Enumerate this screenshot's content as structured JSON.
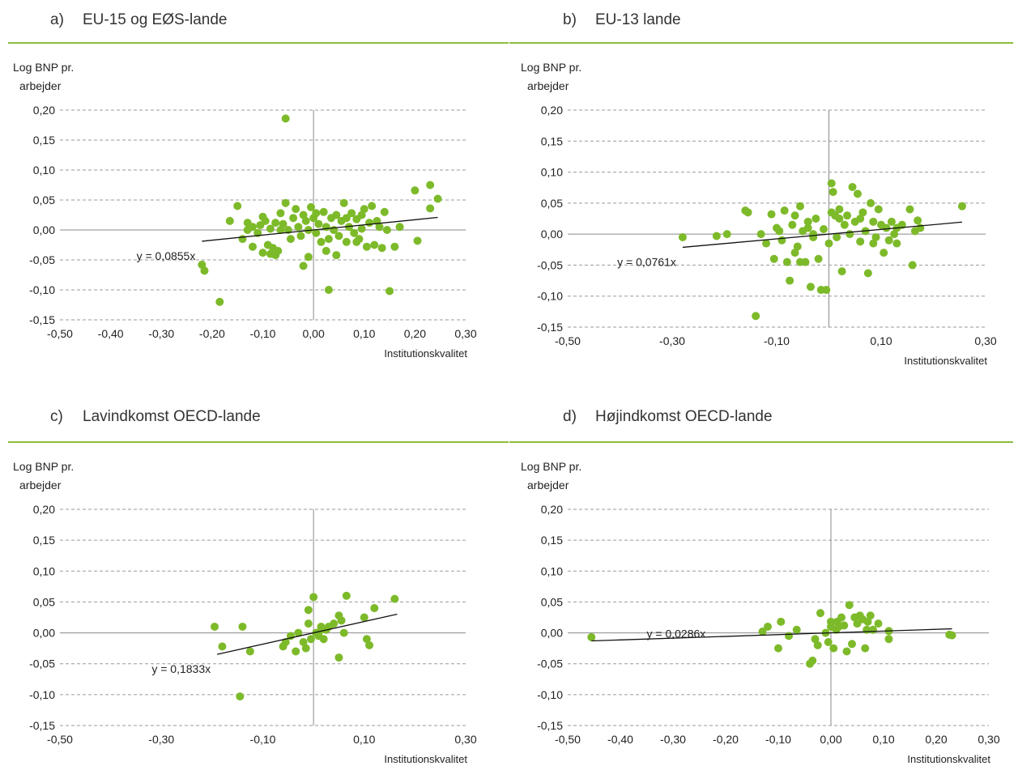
{
  "chart_data": [
    {
      "type": "scatter",
      "panel_label": "a)",
      "title": "EU-15 og EØS-lande",
      "ylabel_line1": "Log BNP pr.",
      "ylabel_line2": "arbejder",
      "xlabel": "Institutionskvalitet",
      "xlim": [
        -0.5,
        0.3
      ],
      "ylim": [
        -0.15,
        0.2
      ],
      "xticks": [
        "-0,50",
        "-0,40",
        "-0,30",
        "-0,20",
        "-0,10",
        "0,00",
        "0,10",
        "0,20",
        "0,30"
      ],
      "xtick_values": [
        -0.5,
        -0.4,
        -0.3,
        -0.2,
        -0.1,
        0.0,
        0.1,
        0.2,
        0.3
      ],
      "yticks": [
        "-0,15",
        "-0,10",
        "-0,05",
        "0,00",
        "0,05",
        "0,10",
        "0,15",
        "0,20"
      ],
      "ytick_values": [
        -0.15,
        -0.1,
        -0.05,
        0.0,
        0.05,
        0.1,
        0.15,
        0.2
      ],
      "grid": "horizontal-dashed",
      "marker_color": "#7dba2a",
      "trend": {
        "label": "y = 0,0855x",
        "slope": 0.0855,
        "x_from": -0.22,
        "x_to": 0.245
      },
      "points": [
        [
          -0.055,
          0.186
        ],
        [
          0.23,
          0.075
        ],
        [
          0.245,
          0.052
        ],
        [
          0.2,
          0.066
        ],
        [
          0.23,
          0.036
        ],
        [
          0.205,
          -0.018
        ],
        [
          -0.22,
          -0.058
        ],
        [
          -0.215,
          -0.068
        ],
        [
          -0.185,
          -0.12
        ],
        [
          0.03,
          -0.1
        ],
        [
          0.15,
          -0.102
        ],
        [
          -0.165,
          0.015
        ],
        [
          -0.15,
          0.04
        ],
        [
          -0.13,
          0.012
        ],
        [
          -0.12,
          0.005
        ],
        [
          -0.11,
          -0.005
        ],
        [
          -0.1,
          0.022
        ],
        [
          -0.095,
          0.015
        ],
        [
          -0.09,
          -0.025
        ],
        [
          -0.085,
          0.002
        ],
        [
          -0.08,
          -0.03
        ],
        [
          -0.075,
          0.012
        ],
        [
          -0.07,
          -0.035
        ],
        [
          -0.065,
          0.028
        ],
        [
          -0.06,
          0.01
        ],
        [
          -0.055,
          0.045
        ],
        [
          -0.05,
          0.0
        ],
        [
          -0.045,
          -0.015
        ],
        [
          -0.04,
          0.02
        ],
        [
          -0.035,
          0.035
        ],
        [
          -0.03,
          0.005
        ],
        [
          -0.025,
          -0.01
        ],
        [
          -0.02,
          0.025
        ],
        [
          -0.015,
          0.015
        ],
        [
          -0.01,
          0.0
        ],
        [
          -0.005,
          0.038
        ],
        [
          0.0,
          0.02
        ],
        [
          0.005,
          -0.005
        ],
        [
          0.01,
          0.01
        ],
        [
          0.015,
          -0.02
        ],
        [
          0.02,
          0.03
        ],
        [
          0.025,
          0.005
        ],
        [
          0.03,
          -0.015
        ],
        [
          0.035,
          0.02
        ],
        [
          0.04,
          0.0
        ],
        [
          0.045,
          0.025
        ],
        [
          0.05,
          -0.01
        ],
        [
          0.055,
          0.015
        ],
        [
          0.06,
          0.045
        ],
        [
          0.065,
          -0.02
        ],
        [
          0.07,
          0.005
        ],
        [
          0.075,
          0.028
        ],
        [
          0.08,
          -0.005
        ],
        [
          0.085,
          0.018
        ],
        [
          0.09,
          -0.015
        ],
        [
          0.095,
          0.002
        ],
        [
          0.1,
          0.035
        ],
        [
          0.105,
          -0.028
        ],
        [
          0.11,
          0.012
        ],
        [
          0.115,
          0.04
        ],
        [
          0.12,
          -0.025
        ],
        [
          0.125,
          0.015
        ],
        [
          0.13,
          0.005
        ],
        [
          0.135,
          -0.03
        ],
        [
          0.14,
          0.03
        ],
        [
          0.145,
          0.0
        ],
        [
          -0.14,
          -0.015
        ],
        [
          -0.13,
          0.0
        ],
        [
          -0.12,
          -0.028
        ],
        [
          -0.105,
          0.008
        ],
        [
          -0.1,
          -0.038
        ],
        [
          -0.085,
          -0.04
        ],
        [
          -0.075,
          -0.042
        ],
        [
          -0.065,
          0.0
        ],
        [
          -0.02,
          -0.06
        ],
        [
          -0.01,
          -0.045
        ],
        [
          0.005,
          0.028
        ],
        [
          0.025,
          -0.035
        ],
        [
          0.045,
          -0.042
        ],
        [
          0.065,
          0.02
        ],
        [
          0.085,
          -0.02
        ],
        [
          0.095,
          0.025
        ],
        [
          0.16,
          -0.028
        ],
        [
          0.17,
          0.005
        ]
      ]
    },
    {
      "type": "scatter",
      "panel_label": "b)",
      "title": "EU-13 lande",
      "ylabel_line1": "Log BNP pr.",
      "ylabel_line2": "arbejder",
      "xlabel": "Institutionskvalitet",
      "xlim": [
        -0.5,
        0.3
      ],
      "ylim": [
        -0.15,
        0.2
      ],
      "xticks": [
        "-0,50",
        "-0,30",
        "-0,10",
        "0,10",
        "0,30"
      ],
      "xtick_values": [
        -0.5,
        -0.3,
        -0.1,
        0.1,
        0.3
      ],
      "yticks": [
        "-0,15",
        "-0,10",
        "-0,05",
        "0,00",
        "0,05",
        "0,10",
        "0,15",
        "0,20"
      ],
      "ytick_values": [
        -0.15,
        -0.1,
        -0.05,
        0.0,
        0.05,
        0.1,
        0.15,
        0.2
      ],
      "grid": "horizontal-dashed",
      "marker_color": "#7dba2a",
      "trend": {
        "label": "y = 0,0761x",
        "slope": 0.0761,
        "x_from": -0.28,
        "x_to": 0.255
      },
      "points": [
        [
          -0.28,
          -0.005
        ],
        [
          -0.215,
          -0.003
        ],
        [
          -0.195,
          0.0
        ],
        [
          -0.16,
          0.038
        ],
        [
          -0.155,
          0.035
        ],
        [
          -0.14,
          -0.132
        ],
        [
          -0.13,
          0.0
        ],
        [
          -0.12,
          -0.015
        ],
        [
          -0.11,
          0.032
        ],
        [
          -0.105,
          -0.04
        ],
        [
          -0.095,
          0.005
        ],
        [
          -0.09,
          -0.01
        ],
        [
          -0.085,
          0.038
        ],
        [
          -0.08,
          -0.045
        ],
        [
          -0.075,
          -0.075
        ],
        [
          -0.07,
          0.015
        ],
        [
          -0.065,
          0.03
        ],
        [
          -0.06,
          -0.02
        ],
        [
          -0.055,
          0.045
        ],
        [
          -0.05,
          0.005
        ],
        [
          -0.045,
          -0.045
        ],
        [
          -0.04,
          0.02
        ],
        [
          -0.035,
          -0.085
        ],
        [
          -0.03,
          0.0
        ],
        [
          -0.025,
          0.025
        ],
        [
          -0.02,
          -0.04
        ],
        [
          -0.015,
          -0.09
        ],
        [
          -0.01,
          0.008
        ],
        [
          -0.005,
          -0.09
        ],
        [
          0.0,
          -0.015
        ],
        [
          0.005,
          0.082
        ],
        [
          0.008,
          0.068
        ],
        [
          0.012,
          0.03
        ],
        [
          0.015,
          -0.005
        ],
        [
          0.02,
          0.04
        ],
        [
          0.025,
          -0.06
        ],
        [
          0.03,
          0.015
        ],
        [
          0.035,
          0.03
        ],
        [
          0.04,
          0.0
        ],
        [
          0.045,
          0.076
        ],
        [
          0.05,
          0.02
        ],
        [
          0.055,
          0.065
        ],
        [
          0.06,
          -0.012
        ],
        [
          0.065,
          0.035
        ],
        [
          0.07,
          0.005
        ],
        [
          0.075,
          -0.063
        ],
        [
          0.08,
          0.05
        ],
        [
          0.085,
          0.02
        ],
        [
          0.09,
          -0.005
        ],
        [
          0.095,
          0.04
        ],
        [
          0.1,
          0.015
        ],
        [
          0.105,
          -0.03
        ],
        [
          0.11,
          0.01
        ],
        [
          0.115,
          -0.01
        ],
        [
          0.12,
          0.02
        ],
        [
          0.125,
          0.0
        ],
        [
          0.13,
          -0.015
        ],
        [
          0.14,
          0.015
        ],
        [
          0.155,
          0.04
        ],
        [
          0.16,
          -0.05
        ],
        [
          0.165,
          0.005
        ],
        [
          0.17,
          0.022
        ],
        [
          0.175,
          0.01
        ],
        [
          0.255,
          0.045
        ],
        [
          -0.1,
          0.01
        ],
        [
          -0.065,
          -0.03
        ],
        [
          -0.055,
          -0.045
        ],
        [
          -0.04,
          0.01
        ],
        [
          -0.03,
          -0.005
        ],
        [
          0.005,
          0.035
        ],
        [
          0.02,
          0.025
        ],
        [
          0.06,
          0.025
        ],
        [
          0.085,
          -0.015
        ],
        [
          0.13,
          0.01
        ]
      ]
    },
    {
      "type": "scatter",
      "panel_label": "c)",
      "title": "Lavindkomst OECD-lande",
      "ylabel_line1": "Log BNP pr.",
      "ylabel_line2": "arbejder",
      "xlabel": "Institutionskvalitet",
      "xlim": [
        -0.5,
        0.3
      ],
      "ylim": [
        -0.15,
        0.2
      ],
      "xticks": [
        "-0,50",
        "-0,30",
        "-0,10",
        "0,10",
        "0,30"
      ],
      "xtick_values": [
        -0.5,
        -0.3,
        -0.1,
        0.1,
        0.3
      ],
      "yticks": [
        "-0,15",
        "-0,10",
        "-0,05",
        "0,00",
        "0,05",
        "0,10",
        "0,15",
        "0,20"
      ],
      "ytick_values": [
        -0.15,
        -0.1,
        -0.05,
        0.0,
        0.05,
        0.1,
        0.15,
        0.2
      ],
      "grid": "horizontal-dashed",
      "marker_color": "#7dba2a",
      "trend": {
        "label": "y = 0,1833x",
        "slope": 0.1833,
        "x_from": -0.19,
        "x_to": 0.165
      },
      "points": [
        [
          -0.195,
          0.01
        ],
        [
          -0.18,
          -0.022
        ],
        [
          -0.145,
          -0.103
        ],
        [
          -0.14,
          0.01
        ],
        [
          -0.125,
          -0.03
        ],
        [
          -0.06,
          -0.022
        ],
        [
          -0.055,
          -0.015
        ],
        [
          -0.045,
          -0.005
        ],
        [
          -0.035,
          -0.03
        ],
        [
          -0.03,
          0.0
        ],
        [
          -0.02,
          -0.015
        ],
        [
          -0.015,
          -0.025
        ],
        [
          -0.01,
          0.037
        ],
        [
          -0.005,
          -0.01
        ],
        [
          0.0,
          0.058
        ],
        [
          0.005,
          0.0
        ],
        [
          0.01,
          -0.005
        ],
        [
          0.015,
          0.01
        ],
        [
          0.02,
          -0.01
        ],
        [
          0.025,
          0.005
        ],
        [
          0.03,
          0.01
        ],
        [
          0.04,
          0.015
        ],
        [
          0.05,
          0.028
        ],
        [
          0.055,
          0.02
        ],
        [
          0.06,
          0.0
        ],
        [
          0.065,
          0.06
        ],
        [
          0.05,
          -0.04
        ],
        [
          0.1,
          0.025
        ],
        [
          0.105,
          -0.01
        ],
        [
          0.11,
          -0.02
        ],
        [
          0.12,
          0.04
        ],
        [
          0.16,
          0.055
        ],
        [
          -0.01,
          0.015
        ],
        [
          0.015,
          0.005
        ]
      ]
    },
    {
      "type": "scatter",
      "panel_label": "d)",
      "title": "Højindkomst OECD-lande",
      "ylabel_line1": "Log BNP pr.",
      "ylabel_line2": "arbejder",
      "xlabel": "Institutionskvalitet",
      "xlim": [
        -0.5,
        0.3
      ],
      "ylim": [
        -0.15,
        0.2
      ],
      "xticks": [
        "-0,50",
        "-0,40",
        "-0,30",
        "-0,20",
        "-0,10",
        "0,00",
        "0,10",
        "0,20",
        "0,30"
      ],
      "xtick_values": [
        -0.5,
        -0.4,
        -0.3,
        -0.2,
        -0.1,
        0.0,
        0.1,
        0.2,
        0.3
      ],
      "yticks": [
        "-0,15",
        "-0,10",
        "-0,05",
        "0,00",
        "0,05",
        "0,10",
        "0,15",
        "0,20"
      ],
      "ytick_values": [
        -0.15,
        -0.1,
        -0.05,
        0.0,
        0.05,
        0.1,
        0.15,
        0.2
      ],
      "grid": "horizontal-dashed",
      "marker_color": "#7dba2a",
      "trend": {
        "label": "y = 0,0286x",
        "slope": 0.0286,
        "x_from": -0.455,
        "x_to": 0.23
      },
      "points": [
        [
          -0.455,
          -0.007
        ],
        [
          -0.13,
          0.002
        ],
        [
          -0.12,
          0.01
        ],
        [
          -0.1,
          -0.025
        ],
        [
          -0.095,
          0.018
        ],
        [
          -0.08,
          -0.005
        ],
        [
          -0.065,
          0.005
        ],
        [
          -0.04,
          -0.05
        ],
        [
          -0.035,
          -0.045
        ],
        [
          -0.03,
          -0.01
        ],
        [
          -0.025,
          -0.02
        ],
        [
          -0.02,
          0.032
        ],
        [
          -0.01,
          0.0
        ],
        [
          -0.005,
          -0.015
        ],
        [
          0.0,
          0.018
        ],
        [
          0.005,
          -0.025
        ],
        [
          0.01,
          0.005
        ],
        [
          0.015,
          0.01
        ],
        [
          0.02,
          0.025
        ],
        [
          0.025,
          0.012
        ],
        [
          0.03,
          -0.03
        ],
        [
          0.035,
          0.045
        ],
        [
          0.04,
          -0.018
        ],
        [
          0.045,
          0.025
        ],
        [
          0.05,
          0.015
        ],
        [
          0.055,
          0.028
        ],
        [
          0.06,
          0.022
        ],
        [
          0.065,
          -0.025
        ],
        [
          0.07,
          0.018
        ],
        [
          0.075,
          0.028
        ],
        [
          0.08,
          0.005
        ],
        [
          0.09,
          0.015
        ],
        [
          0.11,
          -0.01
        ],
        [
          0.11,
          0.003
        ],
        [
          0.225,
          -0.003
        ],
        [
          0.23,
          -0.004
        ],
        [
          0.0,
          0.01
        ],
        [
          0.012,
          0.018
        ],
        [
          0.068,
          0.005
        ]
      ]
    }
  ]
}
